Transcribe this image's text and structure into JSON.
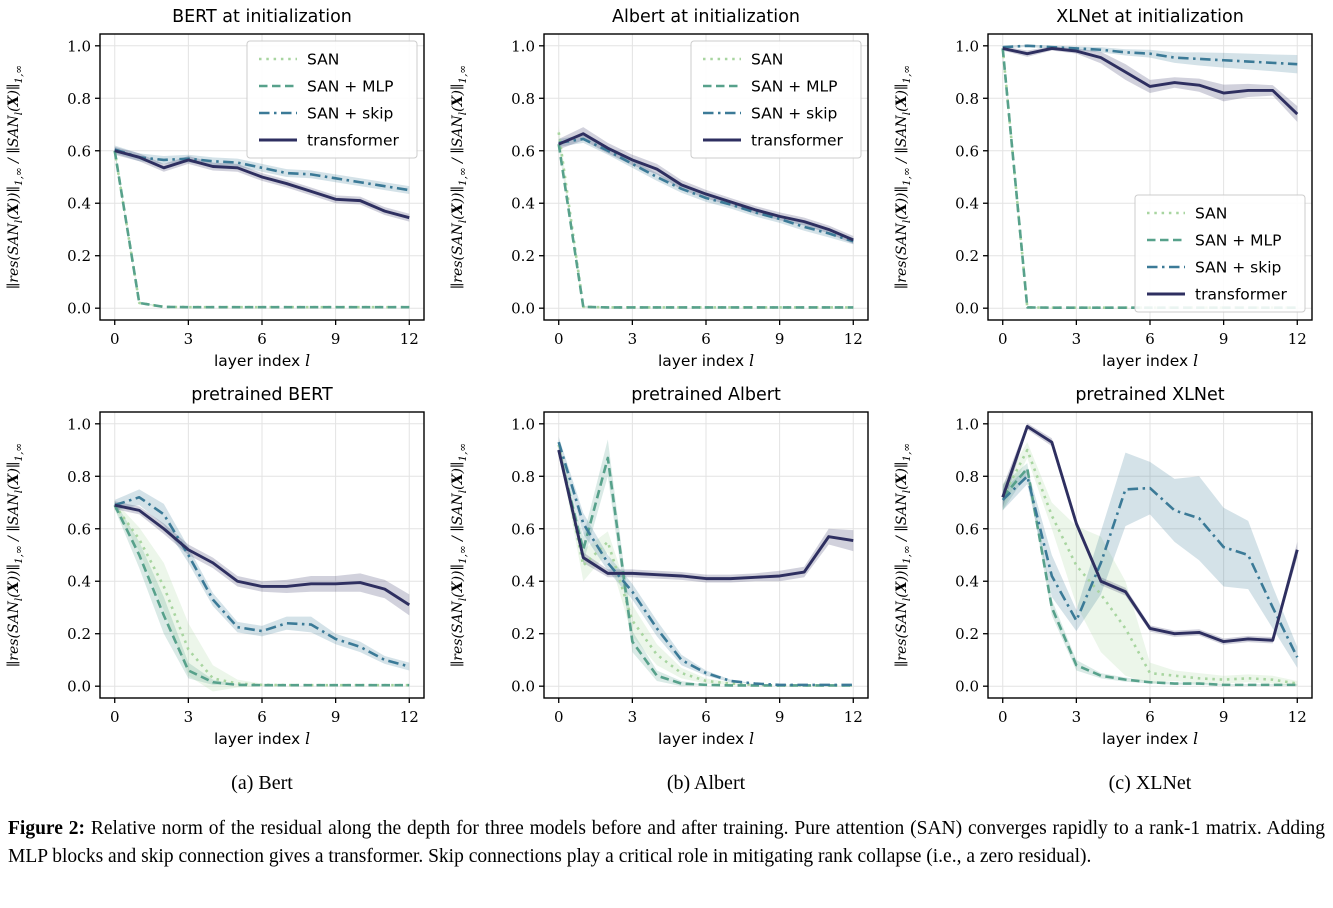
{
  "figure": {
    "subcaptions": [
      "(a) Bert",
      "(b) Albert",
      "(c) XLNet"
    ],
    "caption_label": "Figure 2:",
    "caption_text": " Relative norm of the residual along the depth for three models before and after training. Pure attention (SAN) converges rapidly to a rank-1 matrix. Adding MLP blocks and skip connection gives a transformer. Skip connections play a critical role in mitigating rank collapse (i.e., a zero residual)."
  },
  "axis": {
    "x_tick_values": [
      0,
      3,
      6,
      9,
      12
    ],
    "x_tick_labels": [
      "0",
      "3",
      "6",
      "9",
      "12"
    ],
    "y_tick_values": [
      0.0,
      0.2,
      0.4,
      0.6,
      0.8,
      1.0
    ],
    "y_tick_labels": [
      "0.0",
      "0.2",
      "0.4",
      "0.6",
      "0.8",
      "1.0"
    ],
    "x_label_parts": [
      {
        "t": "layer index ",
        "sans": true
      },
      {
        "t": "l"
      }
    ],
    "y_label_parts": [
      {
        "t": "∥res(SAN"
      },
      {
        "t": "l",
        "sub": true
      },
      {
        "t": "("
      },
      {
        "t": "X",
        "b": true
      },
      {
        "t": "))∥"
      },
      {
        "t": "1,∞",
        "sub": true
      },
      {
        "t": " / ∥SAN"
      },
      {
        "t": "l",
        "sub": true
      },
      {
        "t": "("
      },
      {
        "t": "X",
        "b": true
      },
      {
        "t": ")∥"
      },
      {
        "t": "1,∞",
        "sub": true
      }
    ],
    "grid": true
  },
  "series_styles": [
    {
      "name": "SAN",
      "color": "#a8d5a0",
      "dash": "dotted"
    },
    {
      "name": "SAN + MLP",
      "color": "#57a18b",
      "dash": "dashed"
    },
    {
      "name": "SAN + skip",
      "color": "#3b7a97",
      "dash": "dashdot"
    },
    {
      "name": "transformer",
      "color": "#2e2f60",
      "dash": "solid"
    }
  ],
  "chart_data": [
    {
      "type": "line",
      "title": "BERT at initialization",
      "xlabel": "layer index l",
      "ylabel": "||res(SAN_l(X))||_1,inf / ||SAN_l(X)||_1,inf",
      "x": [
        0,
        1,
        2,
        3,
        4,
        5,
        6,
        7,
        8,
        9,
        10,
        11,
        12
      ],
      "xlim": [
        -0.6,
        12.6
      ],
      "ylim": [
        -0.045,
        1.045
      ],
      "legend": "upper-right",
      "series": [
        {
          "name": "SAN",
          "values": [
            0.6,
            0.02,
            0.005,
            0.004,
            0.004,
            0.004,
            0.004,
            0.004,
            0.004,
            0.004,
            0.004,
            0.004,
            0.004
          ],
          "band": [
            0.012,
            0.004,
            0,
            0,
            0,
            0,
            0,
            0,
            0,
            0,
            0,
            0,
            0
          ]
        },
        {
          "name": "SAN + MLP",
          "values": [
            0.6,
            0.02,
            0.005,
            0.004,
            0.004,
            0.004,
            0.004,
            0.004,
            0.004,
            0.004,
            0.004,
            0.004,
            0.004
          ],
          "band": [
            0.012,
            0.004,
            0,
            0,
            0,
            0,
            0,
            0,
            0,
            0,
            0,
            0,
            0
          ]
        },
        {
          "name": "SAN + skip",
          "values": [
            0.605,
            0.575,
            0.565,
            0.57,
            0.56,
            0.555,
            0.535,
            0.515,
            0.51,
            0.495,
            0.48,
            0.465,
            0.45
          ],
          "band": [
            0.015,
            0.015,
            0.015,
            0.015,
            0.015,
            0.015,
            0.015,
            0.015,
            0.015,
            0.015,
            0.015,
            0.015,
            0.015
          ]
        },
        {
          "name": "transformer",
          "values": [
            0.6,
            0.575,
            0.535,
            0.565,
            0.54,
            0.535,
            0.5,
            0.475,
            0.445,
            0.415,
            0.41,
            0.37,
            0.345
          ],
          "band": [
            0.015,
            0.015,
            0.015,
            0.015,
            0.015,
            0.015,
            0.015,
            0.015,
            0.015,
            0.015,
            0.015,
            0.015,
            0.015
          ]
        }
      ]
    },
    {
      "type": "line",
      "title": "Albert at initialization",
      "xlabel": "layer index l",
      "ylabel": "||res(SAN_l(X))||_1,inf / ||SAN_l(X)||_1,inf",
      "x": [
        0,
        1,
        2,
        3,
        4,
        5,
        6,
        7,
        8,
        9,
        10,
        11,
        12
      ],
      "xlim": [
        -0.6,
        12.6
      ],
      "ylim": [
        -0.045,
        1.045
      ],
      "legend": "upper-right",
      "series": [
        {
          "name": "SAN",
          "values": [
            0.67,
            0.005,
            0.003,
            0.003,
            0.003,
            0.003,
            0.003,
            0.003,
            0.003,
            0.003,
            0.003,
            0.003,
            0.003
          ],
          "band": [
            0.025,
            0.003,
            0,
            0,
            0,
            0,
            0,
            0,
            0,
            0,
            0,
            0,
            0
          ]
        },
        {
          "name": "SAN + MLP",
          "values": [
            0.625,
            0.005,
            0.003,
            0.003,
            0.003,
            0.003,
            0.003,
            0.003,
            0.003,
            0.003,
            0.003,
            0.003,
            0.003
          ],
          "band": [
            0.012,
            0.003,
            0,
            0,
            0,
            0,
            0,
            0,
            0,
            0,
            0,
            0,
            0
          ]
        },
        {
          "name": "SAN + skip",
          "values": [
            0.63,
            0.645,
            0.6,
            0.55,
            0.5,
            0.455,
            0.42,
            0.395,
            0.365,
            0.34,
            0.31,
            0.285,
            0.255
          ],
          "band": [
            0.015,
            0.015,
            0.015,
            0.015,
            0.015,
            0.015,
            0.015,
            0.015,
            0.015,
            0.015,
            0.015,
            0.015,
            0.012
          ]
        },
        {
          "name": "transformer",
          "values": [
            0.625,
            0.665,
            0.61,
            0.565,
            0.53,
            0.47,
            0.435,
            0.405,
            0.375,
            0.35,
            0.33,
            0.3,
            0.26
          ],
          "band": [
            0.02,
            0.025,
            0.02,
            0.02,
            0.02,
            0.018,
            0.016,
            0.015,
            0.015,
            0.015,
            0.015,
            0.015,
            0.015
          ]
        }
      ]
    },
    {
      "type": "line",
      "title": "XLNet at initialization",
      "xlabel": "layer index l",
      "ylabel": "||res(SAN_l(X))||_1,inf / ||SAN_l(X)||_1,inf",
      "x": [
        0,
        1,
        2,
        3,
        4,
        5,
        6,
        7,
        8,
        9,
        10,
        11,
        12
      ],
      "xlim": [
        -0.6,
        12.6
      ],
      "ylim": [
        -0.045,
        1.045
      ],
      "legend": "lower-right",
      "series": [
        {
          "name": "SAN",
          "values": [
            0.99,
            0.003,
            0.002,
            0.002,
            0.002,
            0.002,
            0.002,
            0.002,
            0.002,
            0.002,
            0.002,
            0.002,
            0.002
          ],
          "band": [
            0.006,
            0.002,
            0,
            0,
            0,
            0,
            0,
            0,
            0,
            0,
            0,
            0,
            0
          ]
        },
        {
          "name": "SAN + MLP",
          "values": [
            0.99,
            0.003,
            0.002,
            0.002,
            0.002,
            0.002,
            0.002,
            0.002,
            0.002,
            0.002,
            0.002,
            0.002,
            0.002
          ],
          "band": [
            0.006,
            0.002,
            0,
            0,
            0,
            0,
            0,
            0,
            0,
            0,
            0,
            0,
            0
          ]
        },
        {
          "name": "SAN + skip",
          "values": [
            0.995,
            1.0,
            0.995,
            0.99,
            0.985,
            0.975,
            0.97,
            0.955,
            0.95,
            0.945,
            0.94,
            0.935,
            0.93
          ],
          "band": [
            0.005,
            0.004,
            0.006,
            0.008,
            0.01,
            0.012,
            0.015,
            0.02,
            0.025,
            0.028,
            0.03,
            0.032,
            0.035
          ]
        },
        {
          "name": "transformer",
          "values": [
            0.99,
            0.97,
            0.99,
            0.98,
            0.955,
            0.9,
            0.845,
            0.86,
            0.85,
            0.82,
            0.83,
            0.83,
            0.74
          ],
          "band": [
            0.008,
            0.012,
            0.008,
            0.01,
            0.022,
            0.03,
            0.025,
            0.02,
            0.025,
            0.032,
            0.025,
            0.02,
            0.03
          ]
        }
      ]
    },
    {
      "type": "line",
      "title": "pretrained BERT",
      "xlabel": "layer index l",
      "ylabel": "||res(SAN_l(X))||_1,inf / ||SAN_l(X)||_1,inf",
      "x": [
        0,
        1,
        2,
        3,
        4,
        5,
        6,
        7,
        8,
        9,
        10,
        11,
        12
      ],
      "xlim": [
        -0.6,
        12.6
      ],
      "ylim": [
        -0.045,
        1.045
      ],
      "legend": null,
      "series": [
        {
          "name": "SAN",
          "values": [
            0.69,
            0.56,
            0.38,
            0.14,
            0.03,
            0.01,
            0.005,
            0.004,
            0.004,
            0.004,
            0.004,
            0.004,
            0.004
          ],
          "band": [
            0.015,
            0.045,
            0.09,
            0.1,
            0.05,
            0.015,
            0.005,
            0,
            0,
            0,
            0,
            0,
            0
          ]
        },
        {
          "name": "SAN + MLP",
          "values": [
            0.69,
            0.5,
            0.27,
            0.06,
            0.015,
            0.005,
            0.004,
            0.004,
            0.004,
            0.004,
            0.004,
            0.004,
            0.004
          ],
          "band": [
            0.015,
            0.05,
            0.07,
            0.03,
            0.01,
            0,
            0,
            0,
            0,
            0,
            0,
            0,
            0
          ]
        },
        {
          "name": "SAN + skip",
          "values": [
            0.69,
            0.72,
            0.655,
            0.5,
            0.33,
            0.225,
            0.21,
            0.24,
            0.235,
            0.18,
            0.15,
            0.1,
            0.075
          ],
          "band": [
            0.02,
            0.03,
            0.04,
            0.03,
            0.025,
            0.02,
            0.02,
            0.025,
            0.03,
            0.02,
            0.02,
            0.015,
            0.015
          ]
        },
        {
          "name": "transformer",
          "values": [
            0.69,
            0.67,
            0.6,
            0.52,
            0.47,
            0.4,
            0.38,
            0.38,
            0.39,
            0.39,
            0.395,
            0.37,
            0.31
          ],
          "band": [
            0.015,
            0.015,
            0.02,
            0.02,
            0.02,
            0.02,
            0.02,
            0.025,
            0.03,
            0.03,
            0.035,
            0.035,
            0.04
          ]
        }
      ]
    },
    {
      "type": "line",
      "title": "pretrained Albert",
      "xlabel": "layer index l",
      "ylabel": "||res(SAN_l(X))||_1,inf / ||SAN_l(X)||_1,inf",
      "x": [
        0,
        1,
        2,
        3,
        4,
        5,
        6,
        7,
        8,
        9,
        10,
        11,
        12
      ],
      "xlim": [
        -0.6,
        12.6
      ],
      "ylim": [
        -0.045,
        1.045
      ],
      "legend": null,
      "series": [
        {
          "name": "SAN",
          "values": [
            0.92,
            0.46,
            0.55,
            0.25,
            0.12,
            0.05,
            0.02,
            0.01,
            0.005,
            0.003,
            0.003,
            0.003,
            0.003
          ],
          "band": [
            0.02,
            0.06,
            0.04,
            0.06,
            0.04,
            0.02,
            0.01,
            0.005,
            0,
            0,
            0,
            0,
            0
          ]
        },
        {
          "name": "SAN + MLP",
          "values": [
            0.9,
            0.52,
            0.87,
            0.17,
            0.04,
            0.01,
            0.005,
            0.003,
            0.003,
            0.003,
            0.003,
            0.003,
            0.003
          ],
          "band": [
            0.02,
            0.05,
            0.07,
            0.04,
            0.02,
            0.01,
            0,
            0,
            0,
            0,
            0,
            0,
            0
          ]
        },
        {
          "name": "SAN + skip",
          "values": [
            0.93,
            0.62,
            0.47,
            0.36,
            0.22,
            0.1,
            0.05,
            0.02,
            0.01,
            0.005,
            0.005,
            0.005,
            0.005
          ],
          "band": [
            0.02,
            0.04,
            0.03,
            0.03,
            0.03,
            0.02,
            0.01,
            0.005,
            0,
            0,
            0,
            0,
            0
          ]
        },
        {
          "name": "transformer",
          "values": [
            0.9,
            0.49,
            0.43,
            0.43,
            0.425,
            0.42,
            0.41,
            0.41,
            0.415,
            0.42,
            0.435,
            0.57,
            0.555
          ],
          "band": [
            0.02,
            0.02,
            0.015,
            0.015,
            0.015,
            0.015,
            0.015,
            0.015,
            0.015,
            0.02,
            0.02,
            0.03,
            0.04
          ]
        }
      ]
    },
    {
      "type": "line",
      "title": "pretrained XLNet",
      "xlabel": "layer index l",
      "ylabel": "||res(SAN_l(X))||_1,inf / ||SAN_l(X)||_1,inf",
      "x": [
        0,
        1,
        2,
        3,
        4,
        5,
        6,
        7,
        8,
        9,
        10,
        11,
        12
      ],
      "xlim": [
        -0.6,
        12.6
      ],
      "ylim": [
        -0.045,
        1.045
      ],
      "legend": null,
      "series": [
        {
          "name": "SAN",
          "values": [
            0.72,
            0.9,
            0.65,
            0.46,
            0.35,
            0.22,
            0.05,
            0.04,
            0.03,
            0.025,
            0.03,
            0.025,
            0.01
          ],
          "band": [
            0.05,
            0.03,
            0.05,
            0.15,
            0.22,
            0.18,
            0.04,
            0.02,
            0.02,
            0.015,
            0.015,
            0.015,
            0.01
          ]
        },
        {
          "name": "SAN + MLP",
          "values": [
            0.72,
            0.83,
            0.3,
            0.08,
            0.04,
            0.025,
            0.015,
            0.01,
            0.01,
            0.005,
            0.005,
            0.005,
            0.005
          ],
          "band": [
            0.05,
            0.02,
            0.03,
            0.02,
            0.01,
            0.008,
            0.005,
            0.004,
            0.004,
            0.003,
            0.003,
            0.003,
            0.003
          ]
        },
        {
          "name": "SAN + skip",
          "values": [
            0.71,
            0.8,
            0.42,
            0.25,
            0.47,
            0.75,
            0.755,
            0.67,
            0.64,
            0.53,
            0.5,
            0.3,
            0.11
          ],
          "band": [
            0.04,
            0.03,
            0.08,
            0.04,
            0.12,
            0.14,
            0.1,
            0.12,
            0.16,
            0.15,
            0.13,
            0.08,
            0.04
          ]
        },
        {
          "name": "transformer",
          "values": [
            0.72,
            0.99,
            0.93,
            0.62,
            0.4,
            0.36,
            0.22,
            0.2,
            0.205,
            0.17,
            0.18,
            0.175,
            0.52
          ],
          "band": [
            0.04,
            0.012,
            0.015,
            0.015,
            0.015,
            0.015,
            0.012,
            0.012,
            0.012,
            0.012,
            0.012,
            0.012,
            0.03
          ]
        }
      ]
    }
  ]
}
